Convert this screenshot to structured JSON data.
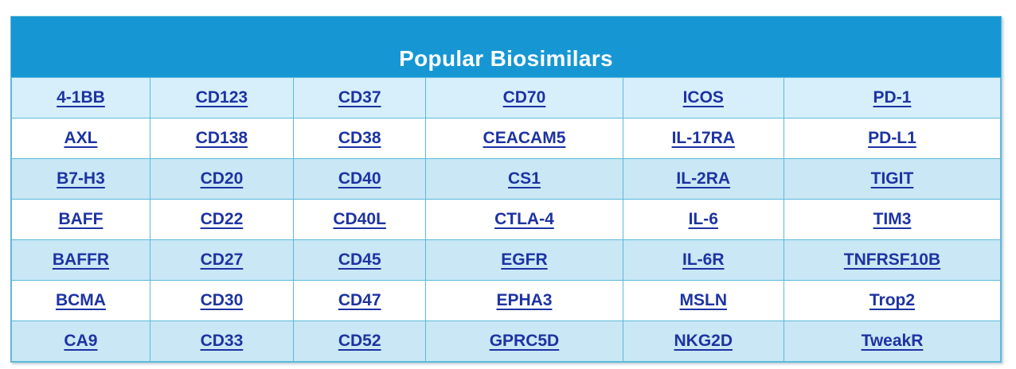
{
  "header": {
    "title": "Popular Biosimilars"
  },
  "colors": {
    "header_bg": "#1697d4",
    "header_text": "#ffffff",
    "row_first_bg": "#d7effb",
    "row_odd_bg": "#c9e7f5",
    "row_even_bg": "#ffffff",
    "cell_border": "#5cb9da",
    "link_text": "#1d33a2"
  },
  "rows": [
    {
      "cells": [
        "4-1BB",
        "CD123",
        "CD37",
        "CD70",
        "ICOS",
        "PD-1"
      ]
    },
    {
      "cells": [
        "AXL",
        "CD138",
        "CD38",
        "CEACAM5",
        "IL-17RA",
        "PD-L1"
      ]
    },
    {
      "cells": [
        "B7-H3",
        "CD20",
        "CD40",
        "CS1",
        "IL-2RA",
        "TIGIT"
      ]
    },
    {
      "cells": [
        "BAFF",
        "CD22",
        "CD40L",
        "CTLA-4",
        "IL-6",
        "TIM3"
      ]
    },
    {
      "cells": [
        "BAFFR",
        "CD27",
        "CD45",
        "EGFR",
        "IL-6R",
        "TNFRSF10B"
      ]
    },
    {
      "cells": [
        "BCMA",
        "CD30",
        "CD47",
        "EPHA3",
        "MSLN",
        "Trop2"
      ]
    },
    {
      "cells": [
        "CA9",
        "CD33",
        "CD52",
        "GPRC5D",
        "NKG2D",
        "TweakR"
      ]
    }
  ]
}
